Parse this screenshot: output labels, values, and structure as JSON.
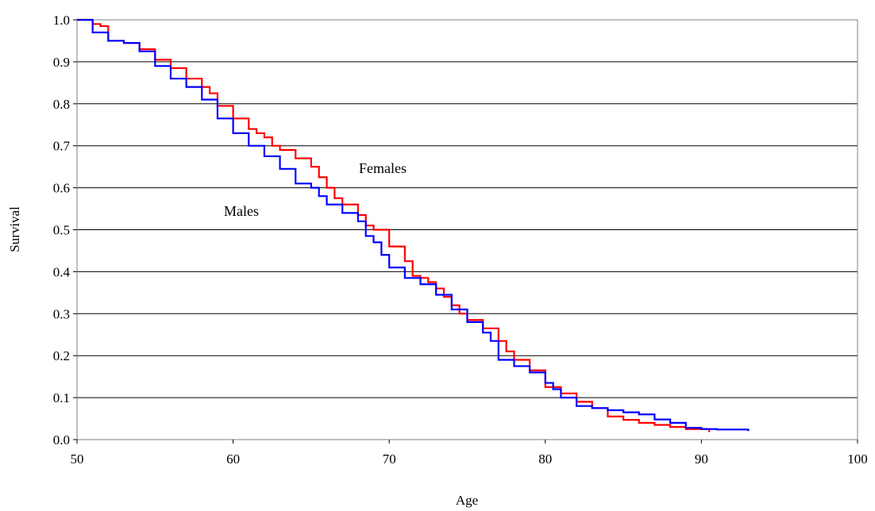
{
  "chart_data": {
    "type": "line",
    "xlabel": "Age",
    "ylabel": "Survival",
    "xlim": [
      50,
      100
    ],
    "ylim": [
      0,
      1
    ],
    "xticks": [
      "50",
      "60",
      "70",
      "80",
      "90",
      "100"
    ],
    "yticks": [
      "0.0",
      "0.1",
      "0.2",
      "0.3",
      "0.4",
      "0.5",
      "0.6",
      "0.7",
      "0.8",
      "0.9",
      "1.0"
    ],
    "grid": "horizontal",
    "annotations": [
      {
        "text": "Females",
        "x": 69.5,
        "y": 0.645
      },
      {
        "text": "Males",
        "x": 61.2,
        "y": 0.545
      }
    ],
    "series": [
      {
        "name": "Females",
        "color": "#ff0000",
        "points": [
          [
            50,
            1.0
          ],
          [
            51,
            0.99
          ],
          [
            51.5,
            0.985
          ],
          [
            52,
            0.95
          ],
          [
            53,
            0.945
          ],
          [
            54,
            0.93
          ],
          [
            55,
            0.905
          ],
          [
            56,
            0.885
          ],
          [
            57,
            0.86
          ],
          [
            58,
            0.84
          ],
          [
            58.5,
            0.825
          ],
          [
            59,
            0.795
          ],
          [
            60,
            0.765
          ],
          [
            61,
            0.74
          ],
          [
            61.5,
            0.73
          ],
          [
            62,
            0.72
          ],
          [
            62.5,
            0.7
          ],
          [
            63,
            0.69
          ],
          [
            64,
            0.67
          ],
          [
            65,
            0.65
          ],
          [
            65.5,
            0.625
          ],
          [
            66,
            0.6
          ],
          [
            66.5,
            0.575
          ],
          [
            67,
            0.56
          ],
          [
            68,
            0.535
          ],
          [
            68.5,
            0.51
          ],
          [
            69,
            0.5
          ],
          [
            70,
            0.46
          ],
          [
            71,
            0.425
          ],
          [
            71.5,
            0.39
          ],
          [
            72,
            0.385
          ],
          [
            72.5,
            0.375
          ],
          [
            73,
            0.36
          ],
          [
            73.5,
            0.34
          ],
          [
            74,
            0.32
          ],
          [
            74.5,
            0.3
          ],
          [
            75,
            0.285
          ],
          [
            76,
            0.265
          ],
          [
            77,
            0.235
          ],
          [
            77.5,
            0.21
          ],
          [
            78,
            0.19
          ],
          [
            79,
            0.165
          ],
          [
            80,
            0.125
          ],
          [
            81,
            0.11
          ],
          [
            82,
            0.09
          ],
          [
            83,
            0.075
          ],
          [
            84,
            0.055
          ],
          [
            85,
            0.047
          ],
          [
            86,
            0.04
          ],
          [
            87,
            0.035
          ],
          [
            88,
            0.03
          ],
          [
            89,
            0.025
          ],
          [
            90.5,
            0.018
          ]
        ]
      },
      {
        "name": "Males",
        "color": "#0000ff",
        "points": [
          [
            50,
            1.0
          ],
          [
            51,
            0.97
          ],
          [
            52,
            0.95
          ],
          [
            53,
            0.945
          ],
          [
            54,
            0.925
          ],
          [
            55,
            0.89
          ],
          [
            56,
            0.86
          ],
          [
            57,
            0.84
          ],
          [
            58,
            0.81
          ],
          [
            59,
            0.765
          ],
          [
            60,
            0.73
          ],
          [
            61,
            0.7
          ],
          [
            62,
            0.675
          ],
          [
            63,
            0.645
          ],
          [
            64,
            0.61
          ],
          [
            65,
            0.6
          ],
          [
            65.5,
            0.58
          ],
          [
            66,
            0.56
          ],
          [
            67,
            0.54
          ],
          [
            68,
            0.52
          ],
          [
            68.5,
            0.485
          ],
          [
            69,
            0.47
          ],
          [
            69.5,
            0.44
          ],
          [
            70,
            0.41
          ],
          [
            71,
            0.385
          ],
          [
            72,
            0.37
          ],
          [
            73,
            0.345
          ],
          [
            74,
            0.31
          ],
          [
            75,
            0.28
          ],
          [
            76,
            0.255
          ],
          [
            76.5,
            0.235
          ],
          [
            77,
            0.19
          ],
          [
            78,
            0.175
          ],
          [
            79,
            0.16
          ],
          [
            80,
            0.135
          ],
          [
            80.5,
            0.12
          ],
          [
            81,
            0.1
          ],
          [
            82,
            0.08
          ],
          [
            83,
            0.075
          ],
          [
            84,
            0.07
          ],
          [
            85,
            0.065
          ],
          [
            86,
            0.06
          ],
          [
            87,
            0.048
          ],
          [
            88,
            0.04
          ],
          [
            89,
            0.028
          ],
          [
            90,
            0.025
          ],
          [
            91,
            0.024
          ],
          [
            93,
            0.02
          ]
        ]
      }
    ]
  }
}
